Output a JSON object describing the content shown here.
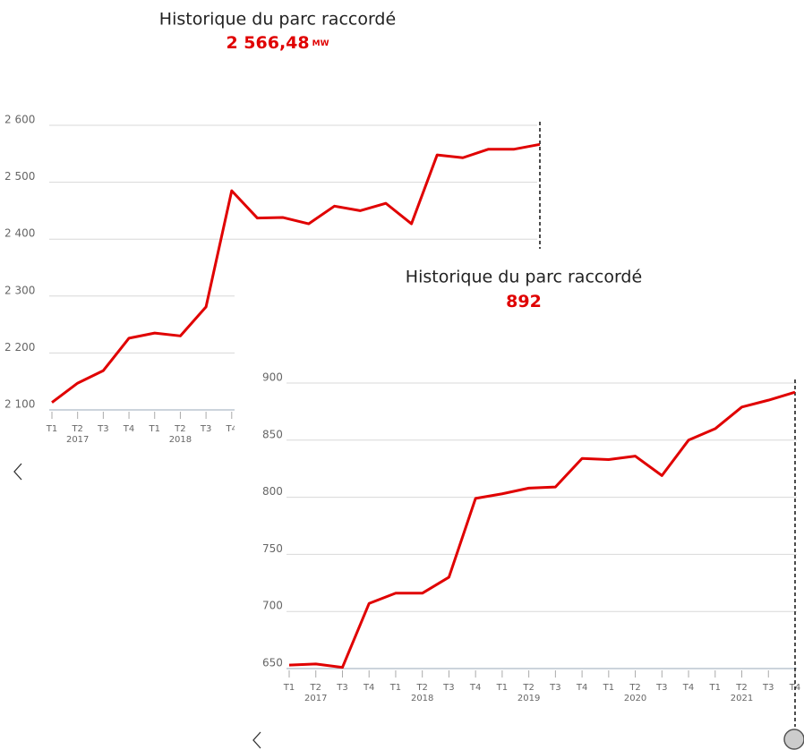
{
  "chart_data": [
    {
      "type": "line",
      "title": "Historique du parc raccordé",
      "headline": "2 566,48",
      "unit": "MW",
      "categories": [
        "T1",
        "T2",
        "T3",
        "T4",
        "T1",
        "T2",
        "T3",
        "T4",
        "T1",
        "T2",
        "T3",
        "T4",
        "T1",
        "T2",
        "T3",
        "T4",
        "T1",
        "T2",
        "T3",
        "T4"
      ],
      "years": [
        "2017",
        "2018",
        "2019",
        "2020",
        "2021"
      ],
      "series": [
        {
          "name": "Historique du parc raccordé",
          "color": "#e00000",
          "values": [
            2113,
            2147,
            2169,
            2226,
            2235,
            2230,
            2281,
            2485,
            2437,
            2438,
            2427,
            2458,
            2450,
            2463,
            2427,
            2548,
            2543,
            2558,
            2558,
            2566.48
          ]
        }
      ],
      "ylim": [
        2100,
        2600
      ],
      "yticks": [
        {
          "value": 2100,
          "label": "2 100"
        },
        {
          "value": 2200,
          "label": "2 200"
        },
        {
          "value": 2300,
          "label": "2 300"
        },
        {
          "value": 2400,
          "label": "2 400"
        },
        {
          "value": 2500,
          "label": "2 500"
        },
        {
          "value": 2600,
          "label": "2 600"
        }
      ],
      "grid": true
    },
    {
      "type": "line",
      "title": "Historique du parc raccordé",
      "headline": 892,
      "categories": [
        "T1",
        "T2",
        "T3",
        "T4",
        "T1",
        "T2",
        "T3",
        "T4",
        "T1",
        "T2",
        "T3",
        "T4",
        "T1",
        "T2",
        "T3",
        "T4",
        "T1",
        "T2",
        "T3",
        "T4"
      ],
      "years": [
        "2017",
        "2018",
        "2019",
        "2020",
        "2021"
      ],
      "series": [
        {
          "name": "Historique du parc raccordé",
          "color": "#e00000",
          "values": [
            653,
            654,
            651,
            707,
            716,
            716,
            730,
            799,
            803,
            808,
            809,
            834,
            833,
            836,
            819,
            850,
            860,
            879,
            885,
            892
          ]
        }
      ],
      "ylim": [
        650,
        900
      ],
      "yticks": [
        650,
        700,
        750,
        800,
        850,
        900
      ],
      "grid": true
    }
  ]
}
